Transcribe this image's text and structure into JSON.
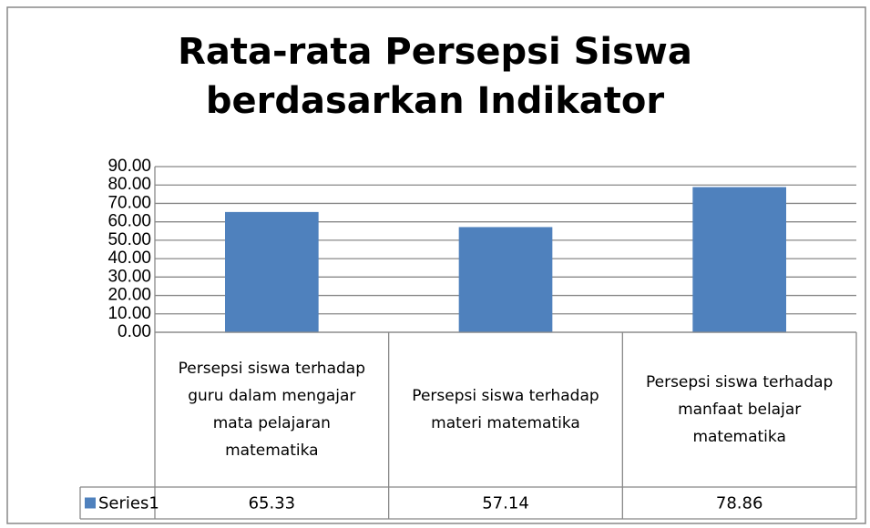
{
  "chart_data": {
    "type": "bar",
    "title": "Rata-rata Persepsi Siswa berdasarkan Indikator",
    "categories": [
      "Persepsi siswa terhadap guru dalam mengajar mata pelajaran matematika",
      "Persepsi siswa terhadap materi matematika",
      "Persepsi siswa terhadap manfaat belajar matematika"
    ],
    "series": [
      {
        "name": "Series1",
        "color": "#4f81bd",
        "values": [
          65.33,
          57.14,
          78.86
        ]
      }
    ],
    "ylim": [
      0,
      90
    ],
    "yticks": [
      {
        "value": 0,
        "label": "0.00"
      },
      {
        "value": 10,
        "label": "10.00"
      },
      {
        "value": 20,
        "label": "20.00"
      },
      {
        "value": 30,
        "label": "30.00"
      },
      {
        "value": 40,
        "label": "40.00"
      },
      {
        "value": 50,
        "label": "50.00"
      },
      {
        "value": 60,
        "label": "60.00"
      },
      {
        "value": 70,
        "label": "70.00"
      },
      {
        "value": 80,
        "label": "80.00"
      },
      {
        "value": 90,
        "label": "90.00"
      }
    ],
    "grid": true,
    "data_table": true
  }
}
